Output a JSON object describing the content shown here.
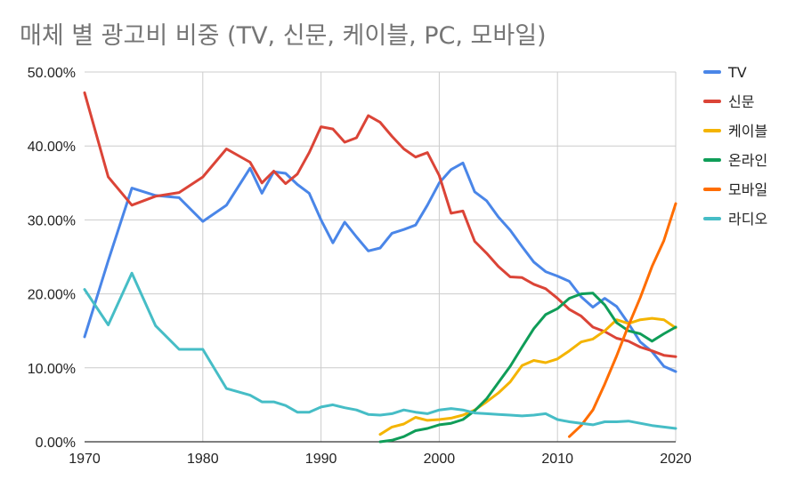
{
  "chart_data": {
    "type": "line",
    "title": "매체 별 광고비 비중 (TV, 신문, 케이블, PC, 모바일)",
    "xlabel": "",
    "ylabel": "",
    "xlim": [
      1970,
      2020
    ],
    "ylim": [
      0,
      50
    ],
    "x_ticks": [
      "1970",
      "1980",
      "1990",
      "2000",
      "2010",
      "2020"
    ],
    "y_ticks": [
      "0.00%",
      "10.00%",
      "20.00%",
      "30.00%",
      "40.00%",
      "50.00%"
    ],
    "grid": true,
    "legend_position": "right",
    "series": [
      {
        "name": "TV",
        "color": "#4a86e8",
        "points": [
          [
            1970,
            14.2
          ],
          [
            1972,
            24.5
          ],
          [
            1974,
            34.3
          ],
          [
            1976,
            33.3
          ],
          [
            1978,
            33.0
          ],
          [
            1980,
            29.8
          ],
          [
            1982,
            32.0
          ],
          [
            1984,
            37.0
          ],
          [
            1985,
            33.6
          ],
          [
            1986,
            36.5
          ],
          [
            1987,
            36.3
          ],
          [
            1988,
            34.8
          ],
          [
            1989,
            33.6
          ],
          [
            1990,
            30.0
          ],
          [
            1991,
            26.9
          ],
          [
            1992,
            29.7
          ],
          [
            1993,
            27.7
          ],
          [
            1994,
            25.8
          ],
          [
            1995,
            26.2
          ],
          [
            1996,
            28.2
          ],
          [
            1997,
            28.7
          ],
          [
            1998,
            29.3
          ],
          [
            1999,
            32.0
          ],
          [
            2000,
            35.0
          ],
          [
            2001,
            36.8
          ],
          [
            2002,
            37.7
          ],
          [
            2003,
            33.8
          ],
          [
            2004,
            32.6
          ],
          [
            2005,
            30.4
          ],
          [
            2006,
            28.6
          ],
          [
            2007,
            26.4
          ],
          [
            2008,
            24.3
          ],
          [
            2009,
            23.0
          ],
          [
            2010,
            22.4
          ],
          [
            2011,
            21.7
          ],
          [
            2012,
            19.6
          ],
          [
            2013,
            18.2
          ],
          [
            2014,
            19.4
          ],
          [
            2015,
            18.3
          ],
          [
            2016,
            16.0
          ],
          [
            2017,
            13.5
          ],
          [
            2018,
            12.2
          ],
          [
            2019,
            10.2
          ],
          [
            2020,
            9.5
          ]
        ]
      },
      {
        "name": "신문",
        "color": "#db4437",
        "points": [
          [
            1970,
            47.2
          ],
          [
            1972,
            35.8
          ],
          [
            1974,
            32.0
          ],
          [
            1976,
            33.2
          ],
          [
            1978,
            33.7
          ],
          [
            1980,
            35.8
          ],
          [
            1982,
            39.6
          ],
          [
            1984,
            37.8
          ],
          [
            1985,
            35.0
          ],
          [
            1986,
            36.6
          ],
          [
            1987,
            34.9
          ],
          [
            1988,
            36.2
          ],
          [
            1989,
            39.1
          ],
          [
            1990,
            42.6
          ],
          [
            1991,
            42.3
          ],
          [
            1992,
            40.5
          ],
          [
            1993,
            41.1
          ],
          [
            1994,
            44.1
          ],
          [
            1995,
            43.2
          ],
          [
            1996,
            41.3
          ],
          [
            1997,
            39.6
          ],
          [
            1998,
            38.5
          ],
          [
            1999,
            39.1
          ],
          [
            2000,
            36.0
          ],
          [
            2001,
            30.9
          ],
          [
            2002,
            31.2
          ],
          [
            2003,
            27.1
          ],
          [
            2004,
            25.5
          ],
          [
            2005,
            23.7
          ],
          [
            2006,
            22.3
          ],
          [
            2007,
            22.2
          ],
          [
            2008,
            21.3
          ],
          [
            2009,
            20.7
          ],
          [
            2010,
            19.4
          ],
          [
            2011,
            17.9
          ],
          [
            2012,
            17.0
          ],
          [
            2013,
            15.5
          ],
          [
            2014,
            14.9
          ],
          [
            2015,
            14.0
          ],
          [
            2016,
            13.6
          ],
          [
            2017,
            12.8
          ],
          [
            2018,
            12.3
          ],
          [
            2019,
            11.7
          ],
          [
            2020,
            11.5
          ]
        ]
      },
      {
        "name": "케이블",
        "color": "#f4b400",
        "points": [
          [
            1995,
            1.0
          ],
          [
            1996,
            2.0
          ],
          [
            1997,
            2.4
          ],
          [
            1998,
            3.3
          ],
          [
            1999,
            2.9
          ],
          [
            2000,
            3.0
          ],
          [
            2001,
            3.2
          ],
          [
            2002,
            3.6
          ],
          [
            2003,
            4.3
          ],
          [
            2004,
            5.4
          ],
          [
            2005,
            6.6
          ],
          [
            2006,
            8.1
          ],
          [
            2007,
            10.3
          ],
          [
            2008,
            11.0
          ],
          [
            2009,
            10.7
          ],
          [
            2010,
            11.2
          ],
          [
            2011,
            12.3
          ],
          [
            2012,
            13.5
          ],
          [
            2013,
            13.9
          ],
          [
            2014,
            15.0
          ],
          [
            2015,
            16.5
          ],
          [
            2016,
            16.0
          ],
          [
            2017,
            16.5
          ],
          [
            2018,
            16.7
          ],
          [
            2019,
            16.5
          ],
          [
            2020,
            15.4
          ]
        ]
      },
      {
        "name": "온라인",
        "color": "#0f9d58",
        "points": [
          [
            1995,
            0.0
          ],
          [
            1996,
            0.2
          ],
          [
            1997,
            0.7
          ],
          [
            1998,
            1.5
          ],
          [
            1999,
            1.8
          ],
          [
            2000,
            2.3
          ],
          [
            2001,
            2.5
          ],
          [
            2002,
            3.0
          ],
          [
            2003,
            4.2
          ],
          [
            2004,
            5.8
          ],
          [
            2005,
            8.0
          ],
          [
            2006,
            10.2
          ],
          [
            2007,
            12.8
          ],
          [
            2008,
            15.3
          ],
          [
            2009,
            17.2
          ],
          [
            2010,
            18.0
          ],
          [
            2011,
            19.4
          ],
          [
            2012,
            20.0
          ],
          [
            2013,
            20.1
          ],
          [
            2014,
            18.5
          ],
          [
            2015,
            16.1
          ],
          [
            2016,
            15.0
          ],
          [
            2017,
            14.6
          ],
          [
            2018,
            13.6
          ],
          [
            2019,
            14.6
          ],
          [
            2020,
            15.5
          ]
        ]
      },
      {
        "name": "모바일",
        "color": "#ff6d00",
        "points": [
          [
            2011,
            0.7
          ],
          [
            2012,
            2.2
          ],
          [
            2013,
            4.3
          ],
          [
            2014,
            7.8
          ],
          [
            2015,
            11.6
          ],
          [
            2016,
            15.7
          ],
          [
            2017,
            19.5
          ],
          [
            2018,
            23.7
          ],
          [
            2019,
            27.2
          ],
          [
            2020,
            32.2
          ]
        ]
      },
      {
        "name": "라디오",
        "color": "#46bdc6",
        "points": [
          [
            1970,
            20.6
          ],
          [
            1972,
            15.8
          ],
          [
            1974,
            22.8
          ],
          [
            1976,
            15.7
          ],
          [
            1978,
            12.5
          ],
          [
            1980,
            12.5
          ],
          [
            1982,
            7.2
          ],
          [
            1984,
            6.3
          ],
          [
            1985,
            5.4
          ],
          [
            1986,
            5.4
          ],
          [
            1987,
            4.9
          ],
          [
            1988,
            4.0
          ],
          [
            1989,
            4.0
          ],
          [
            1990,
            4.7
          ],
          [
            1991,
            5.0
          ],
          [
            1992,
            4.6
          ],
          [
            1993,
            4.3
          ],
          [
            1994,
            3.7
          ],
          [
            1995,
            3.6
          ],
          [
            1996,
            3.8
          ],
          [
            1997,
            4.3
          ],
          [
            1998,
            4.0
          ],
          [
            1999,
            3.8
          ],
          [
            2000,
            4.3
          ],
          [
            2001,
            4.5
          ],
          [
            2002,
            4.3
          ],
          [
            2003,
            3.9
          ],
          [
            2004,
            3.8
          ],
          [
            2005,
            3.7
          ],
          [
            2006,
            3.6
          ],
          [
            2007,
            3.5
          ],
          [
            2008,
            3.6
          ],
          [
            2009,
            3.8
          ],
          [
            2010,
            3.0
          ],
          [
            2011,
            2.7
          ],
          [
            2012,
            2.5
          ],
          [
            2013,
            2.3
          ],
          [
            2014,
            2.7
          ],
          [
            2015,
            2.7
          ],
          [
            2016,
            2.8
          ],
          [
            2017,
            2.5
          ],
          [
            2018,
            2.2
          ],
          [
            2019,
            2.0
          ],
          [
            2020,
            1.8
          ]
        ]
      }
    ]
  }
}
